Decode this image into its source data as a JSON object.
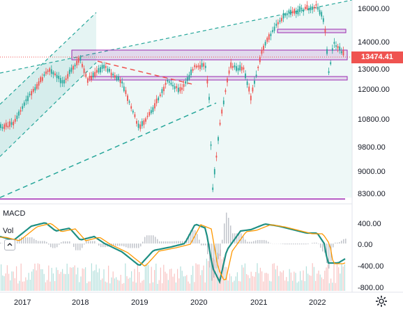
{
  "chart_data": {
    "type": "candlestick",
    "price_axis": {
      "ticks": [
        "16000.00",
        "14000.00",
        "13000.00",
        "12000.00",
        "10800.00",
        "9800.00",
        "9000.00",
        "8300.00"
      ],
      "last_price": "13474.41"
    },
    "macd_axis": {
      "ticks": [
        "400.00",
        "0.00",
        "-400.00",
        "-800.00"
      ]
    },
    "time_axis": {
      "ticks": [
        "2017",
        "2018",
        "2019",
        "2020",
        "2021",
        "2022"
      ]
    },
    "indicator_labels": {
      "macd": "MACD",
      "volume": "Vol"
    },
    "colors": {
      "up": "#26a69a",
      "down": "#ef5350",
      "channel": "#26a69a",
      "zone": "#9c27b0",
      "trend_dash": "#ef5350",
      "macd_line": "#1e8f83",
      "signal_line": "#ff9800",
      "price_badge": "#ef5350"
    }
  }
}
